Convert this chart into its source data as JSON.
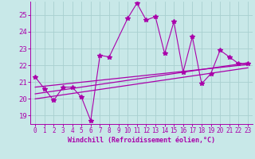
{
  "xlabel": "Windchill (Refroidissement éolien,°C)",
  "bg_color": "#c8e8e8",
  "grid_color": "#a8d0d0",
  "line_color": "#aa00aa",
  "xlim": [
    -0.5,
    23.5
  ],
  "ylim": [
    18.5,
    25.8
  ],
  "xticks": [
    0,
    1,
    2,
    3,
    4,
    5,
    6,
    7,
    8,
    9,
    10,
    11,
    12,
    13,
    14,
    15,
    16,
    17,
    18,
    19,
    20,
    21,
    22,
    23
  ],
  "yticks": [
    19,
    20,
    21,
    22,
    23,
    24,
    25
  ],
  "series1_x": [
    0,
    1,
    2,
    3,
    4,
    5,
    6,
    7,
    8,
    10,
    11,
    12,
    13,
    14,
    15,
    16,
    17,
    18,
    19,
    20,
    21,
    22,
    23
  ],
  "series1_y": [
    21.3,
    20.6,
    19.9,
    20.7,
    20.7,
    20.1,
    18.7,
    22.6,
    22.5,
    24.8,
    25.7,
    24.7,
    24.9,
    22.7,
    24.6,
    21.6,
    23.7,
    20.9,
    21.5,
    22.9,
    22.5,
    22.1,
    22.1
  ],
  "trend1_x": [
    0,
    23
  ],
  "trend1_y": [
    20.3,
    22.15
  ],
  "trend2_x": [
    0,
    23
  ],
  "trend2_y": [
    20.0,
    21.85
  ],
  "trend3_x": [
    0,
    23
  ],
  "trend3_y": [
    20.7,
    22.05
  ]
}
